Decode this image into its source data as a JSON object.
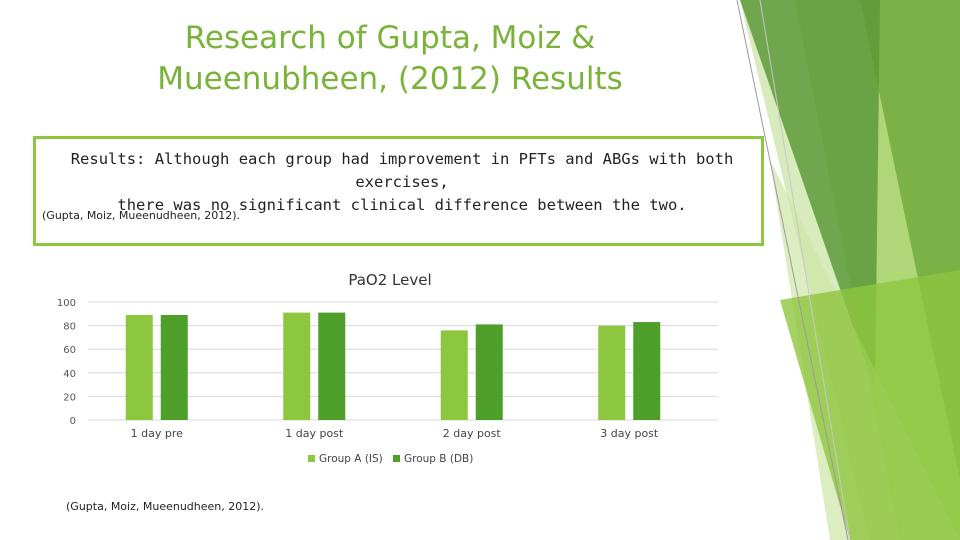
{
  "slide": {
    "title_line1": "Research of Gupta, Moiz &",
    "title_line2": "Mueenubheen, (2012) Results",
    "results_line1": "Results: Although each group had improvement in PFTs and ABGs with both exercises,",
    "results_line2": "there was no significant clinical difference between the two.",
    "results_citation": "(Gupta, Moiz, Mueenudheen, 2012).",
    "bottom_citation": "(Gupta, Moiz, Mueenudheen, 2012)."
  },
  "colors": {
    "accent": "#8ec63f",
    "title": "#7ab33a",
    "series_a": "#8dc63f",
    "series_b": "#4e9e2a"
  },
  "chart_data": {
    "type": "bar",
    "title": "PaO2 Level",
    "categories": [
      "1 day pre",
      "1 day post",
      "2 day post",
      "3 day post"
    ],
    "series": [
      {
        "name": "Group A (IS)",
        "values": [
          89,
          91,
          76,
          80
        ]
      },
      {
        "name": "Group B (DB)",
        "values": [
          89,
          91,
          81,
          83
        ]
      }
    ],
    "ylim": [
      0,
      100
    ],
    "yticks": [
      0,
      20,
      40,
      60,
      80,
      100
    ],
    "grid": true,
    "legend": "bottom"
  }
}
